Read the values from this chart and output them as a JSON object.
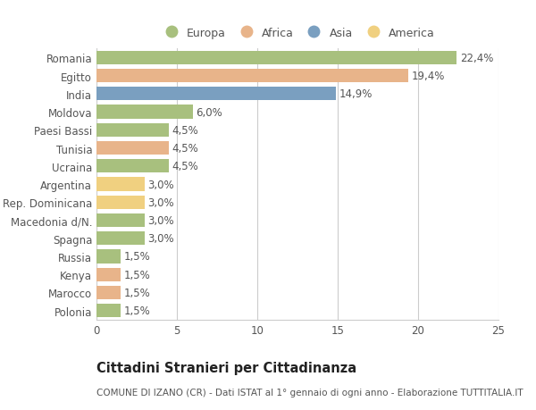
{
  "categories": [
    "Romania",
    "Egitto",
    "India",
    "Moldova",
    "Paesi Bassi",
    "Tunisia",
    "Ucraina",
    "Argentina",
    "Rep. Dominicana",
    "Macedonia d/N.",
    "Spagna",
    "Russia",
    "Kenya",
    "Marocco",
    "Polonia"
  ],
  "values": [
    22.4,
    19.4,
    14.9,
    6.0,
    4.5,
    4.5,
    4.5,
    3.0,
    3.0,
    3.0,
    3.0,
    1.5,
    1.5,
    1.5,
    1.5
  ],
  "labels": [
    "22,4%",
    "19,4%",
    "14,9%",
    "6,0%",
    "4,5%",
    "4,5%",
    "4,5%",
    "3,0%",
    "3,0%",
    "3,0%",
    "3,0%",
    "1,5%",
    "1,5%",
    "1,5%",
    "1,5%"
  ],
  "continents": [
    "Europa",
    "Africa",
    "Asia",
    "Europa",
    "Europa",
    "Africa",
    "Europa",
    "America",
    "America",
    "Europa",
    "Europa",
    "Europa",
    "Africa",
    "Africa",
    "Europa"
  ],
  "continent_colors": {
    "Europa": "#a8c07e",
    "Africa": "#e8b48a",
    "Asia": "#7a9fc0",
    "America": "#f0d080"
  },
  "legend_order": [
    "Europa",
    "Africa",
    "Asia",
    "America"
  ],
  "legend_colors": {
    "Europa": "#a8c07e",
    "Africa": "#e8b48a",
    "Asia": "#7a9fc0",
    "America": "#f0d080"
  },
  "xlim": [
    0,
    25
  ],
  "xticks": [
    0,
    5,
    10,
    15,
    20,
    25
  ],
  "title": "Cittadini Stranieri per Cittadinanza",
  "subtitle": "COMUNE DI IZANO (CR) - Dati ISTAT al 1° gennaio di ogni anno - Elaborazione TUTTITALIA.IT",
  "background_color": "#ffffff",
  "grid_color": "#cccccc",
  "bar_height": 0.75,
  "label_fontsize": 8.5,
  "tick_fontsize": 8.5,
  "title_fontsize": 10.5,
  "subtitle_fontsize": 7.5
}
